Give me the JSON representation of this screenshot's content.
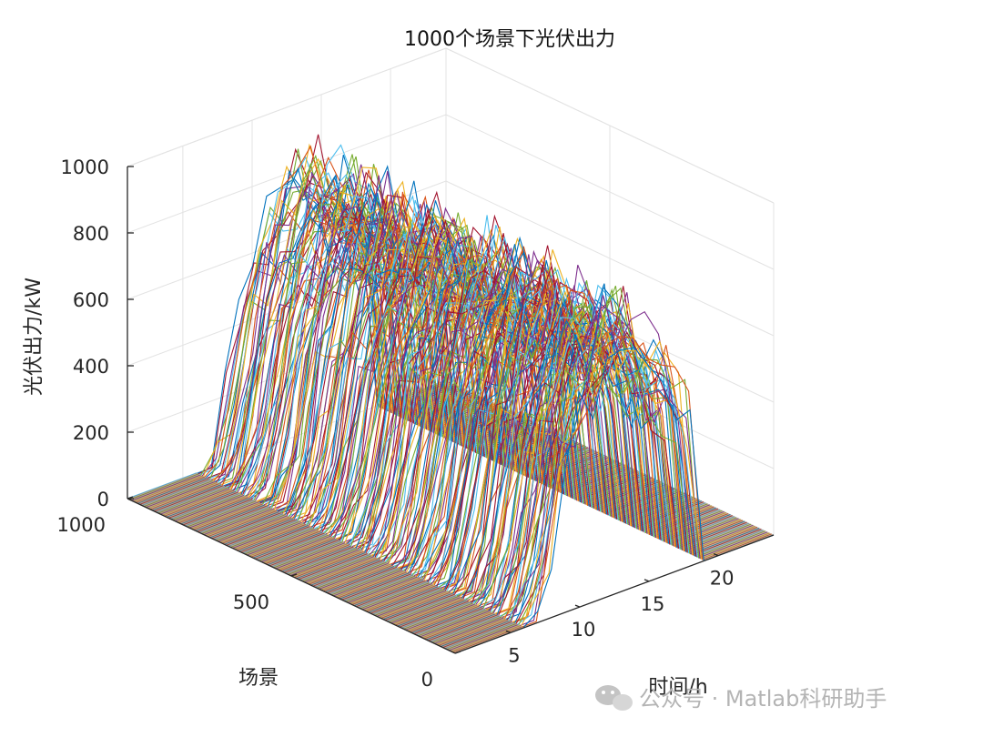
{
  "chart_data": {
    "type": "line3d",
    "title": "1000个场景下光伏出力",
    "xlabel": "时间/h",
    "ylabel": "场景",
    "zlabel": "光伏出力/kW",
    "xlim": [
      1,
      24
    ],
    "ylim": [
      0,
      1000
    ],
    "zlim": [
      0,
      1000
    ],
    "x_ticks": [
      "5",
      "10",
      "15",
      "20"
    ],
    "y_ticks": [
      "0",
      "500",
      "1000"
    ],
    "z_ticks": [
      "0",
      "200",
      "400",
      "600",
      "800",
      "1000"
    ],
    "n_scenarios": 1000,
    "hours": [
      1,
      2,
      3,
      4,
      5,
      6,
      7,
      8,
      9,
      10,
      11,
      12,
      13,
      14,
      15,
      16,
      17,
      18,
      19,
      20,
      21,
      22,
      23,
      24
    ],
    "typical_profile_kw": [
      0,
      0,
      0,
      0,
      0,
      0,
      30,
      200,
      450,
      600,
      700,
      780,
      800,
      780,
      720,
      650,
      560,
      480,
      0,
      0,
      0,
      0,
      0,
      0
    ],
    "grid": "on",
    "series_colors": [
      "#0072BD",
      "#D95319",
      "#EDB120",
      "#7E2F8E",
      "#77AC30",
      "#4DBEEE",
      "#A2142F"
    ]
  },
  "watermark": "公众号 · Matlab科研助手"
}
